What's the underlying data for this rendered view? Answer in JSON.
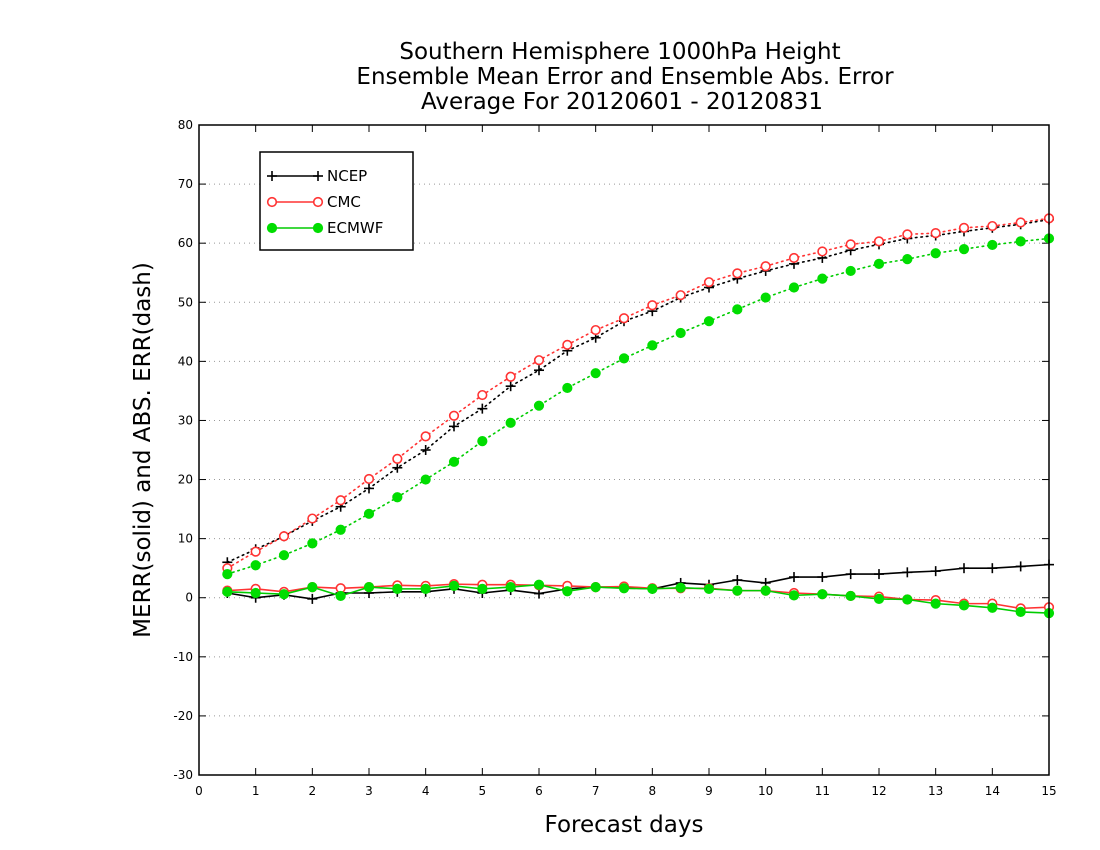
{
  "chart_data": {
    "type": "line",
    "title": [
      "Southern Hemisphere 1000hPa Height",
      "Ensemble Mean Error and Ensemble Abs. Error",
      "Average For 20120601 - 20120831"
    ],
    "xlabel": "Forecast days",
    "ylabel": "MERR(solid) and ABS. ERR(dash)",
    "xlim": [
      0,
      15
    ],
    "ylim": [
      -30,
      80
    ],
    "xticks": [
      "0",
      "1",
      "2",
      "3",
      "4",
      "5",
      "6",
      "7",
      "8",
      "9",
      "10",
      "11",
      "12",
      "13",
      "14",
      "15"
    ],
    "yticks": [
      "-30",
      "-20",
      "-10",
      "0",
      "10",
      "20",
      "30",
      "40",
      "50",
      "60",
      "70",
      "80"
    ],
    "grid": "horizontal dotted",
    "legend_position": "top-left",
    "x": [
      0.5,
      1,
      1.5,
      2,
      2.5,
      3,
      3.5,
      4,
      4.5,
      5,
      5.5,
      6,
      6.5,
      7,
      7.5,
      8,
      8.5,
      9,
      9.5,
      10,
      10.5,
      11,
      11.5,
      12,
      12.5,
      13,
      13.5,
      14,
      14.5,
      15
    ],
    "series": [
      {
        "name": "NCEP",
        "color": "#000000",
        "marker": "plus",
        "abs_error": [
          6,
          8.2,
          10.4,
          13,
          15.4,
          18.5,
          22,
          25,
          29,
          32,
          35.8,
          38.5,
          41.8,
          44,
          46.8,
          48.5,
          50.8,
          52.5,
          54,
          55.3,
          56.5,
          57.5,
          58.8,
          59.8,
          60.8,
          61.3,
          62,
          62.6,
          63.2,
          64
        ],
        "mean_error": [
          0.8,
          0,
          0.5,
          -0.2,
          0.8,
          0.8,
          1,
          1,
          1.5,
          0.8,
          1.3,
          0.7,
          1.5,
          1.8,
          1.7,
          1.5,
          2.5,
          2.2,
          3,
          2.5,
          3.5,
          3.5,
          4,
          4,
          4.3,
          4.5,
          5,
          5,
          5.3,
          5.6
        ]
      },
      {
        "name": "CMC",
        "color": "#ff3333",
        "marker": "circle",
        "abs_error": [
          5,
          7.8,
          10.4,
          13.4,
          16.5,
          20.1,
          23.5,
          27.3,
          30.8,
          34.3,
          37.4,
          40.2,
          42.8,
          45.3,
          47.3,
          49.5,
          51.2,
          53.4,
          54.9,
          56.1,
          57.5,
          58.6,
          59.8,
          60.3,
          61.5,
          61.7,
          62.6,
          62.9,
          63.5,
          64.2
        ],
        "mean_error": [
          1.2,
          1.5,
          1,
          1.8,
          1.6,
          1.8,
          2.1,
          2,
          2.3,
          2.2,
          2.2,
          2.1,
          2,
          1.8,
          1.9,
          1.6,
          1.6,
          1.6,
          1.2,
          1.2,
          0.8,
          0.6,
          0.3,
          0.2,
          -0.3,
          -0.4,
          -1,
          -1,
          -1.8,
          -1.6
        ]
      },
      {
        "name": "ECMWF",
        "color": "#00dd00",
        "marker": "filled-circle",
        "abs_error": [
          4,
          5.5,
          7.2,
          9.2,
          11.5,
          14.2,
          17,
          20,
          23,
          26.5,
          29.6,
          32.5,
          35.5,
          38,
          40.5,
          42.7,
          44.8,
          46.8,
          48.8,
          50.8,
          52.5,
          54,
          55.3,
          56.5,
          57.3,
          58.3,
          59,
          59.7,
          60.3,
          60.8
        ],
        "mean_error": [
          1,
          0.8,
          0.6,
          1.8,
          0.3,
          1.8,
          1.5,
          1.5,
          2,
          1.5,
          1.8,
          2.2,
          1.1,
          1.8,
          1.6,
          1.5,
          1.7,
          1.5,
          1.2,
          1.2,
          0.4,
          0.6,
          0.3,
          -0.2,
          -0.3,
          -1,
          -1.3,
          -1.7,
          -2.4,
          -2.6
        ]
      }
    ]
  }
}
